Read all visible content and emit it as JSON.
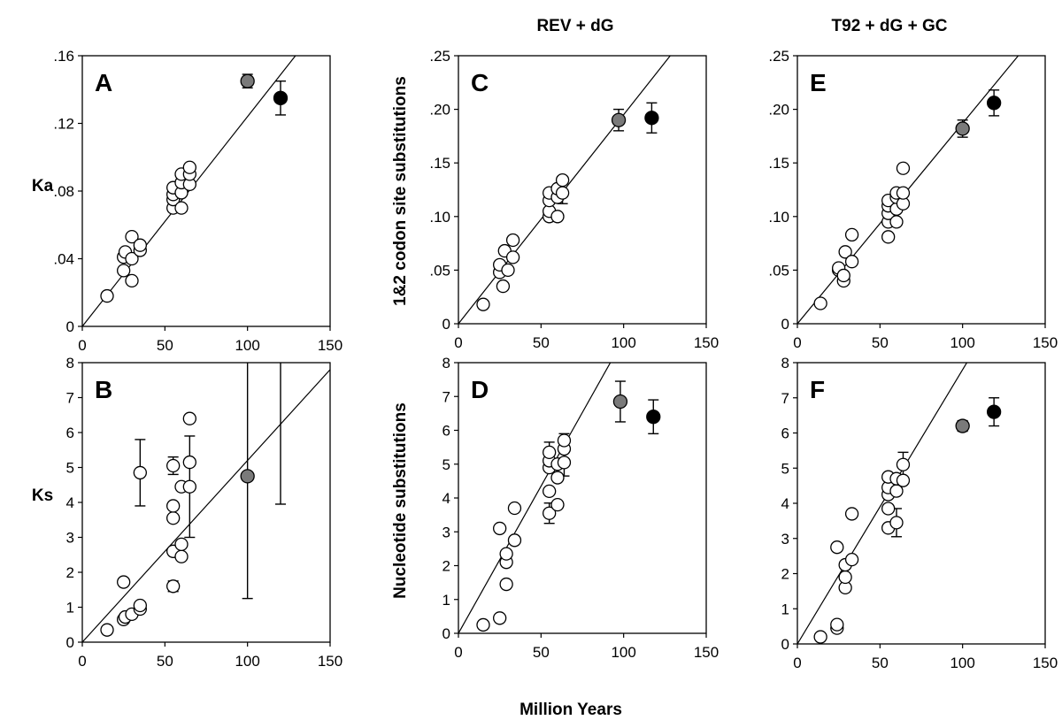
{
  "figure": {
    "x_axis_label": "Million Years",
    "column_titles": [
      "",
      "REV + dG",
      "T92 + dG + GC"
    ],
    "colors": {
      "open": "#ffffff",
      "grey": "#7a7a7a",
      "black": "#000000",
      "line": "#000000"
    }
  },
  "chart_data": [
    {
      "type": "scatter",
      "panel_label": "A",
      "ylabel": "Ka",
      "column_title": "",
      "xlim": [
        0,
        150
      ],
      "ylim": [
        0,
        0.16
      ],
      "xticks": [
        "0",
        "50",
        "100",
        "150"
      ],
      "yticks": [
        ".16",
        ".12",
        ".08",
        ".04",
        "0"
      ],
      "regression_line": {
        "slope": 0.00124,
        "intercept": 0
      },
      "points": [
        {
          "x": 15,
          "y": 0.018
        },
        {
          "x": 25,
          "y": 0.033
        },
        {
          "x": 25,
          "y": 0.041
        },
        {
          "x": 26,
          "y": 0.044
        },
        {
          "x": 30,
          "y": 0.027
        },
        {
          "x": 30,
          "y": 0.04
        },
        {
          "x": 30,
          "y": 0.053
        },
        {
          "x": 35,
          "y": 0.045
        },
        {
          "x": 35,
          "y": 0.048
        },
        {
          "x": 55,
          "y": 0.07
        },
        {
          "x": 55,
          "y": 0.075
        },
        {
          "x": 55,
          "y": 0.078
        },
        {
          "x": 55,
          "y": 0.082
        },
        {
          "x": 60,
          "y": 0.07
        },
        {
          "x": 60,
          "y": 0.079
        },
        {
          "x": 60,
          "y": 0.085
        },
        {
          "x": 60,
          "y": 0.09
        },
        {
          "x": 65,
          "y": 0.084
        },
        {
          "x": 65,
          "y": 0.09
        },
        {
          "x": 65,
          "y": 0.094
        }
      ],
      "highlight_points": [
        {
          "x": 100,
          "y": 0.145,
          "err": 0.004,
          "color": "grey"
        },
        {
          "x": 120,
          "y": 0.135,
          "err": 0.01,
          "color": "black"
        }
      ],
      "error_bars": []
    },
    {
      "type": "scatter",
      "panel_label": "B",
      "ylabel": "Ks",
      "column_title": "",
      "xlim": [
        0,
        150
      ],
      "ylim": [
        0,
        8
      ],
      "xticks": [
        "0",
        "50",
        "100",
        "150"
      ],
      "yticks": [
        "8",
        "7",
        "6",
        "5",
        "4",
        "3",
        "2",
        "1",
        "0"
      ],
      "regression_line": {
        "slope": 0.052,
        "intercept": 0
      },
      "points": [
        {
          "x": 15,
          "y": 0.35
        },
        {
          "x": 25,
          "y": 1.72
        },
        {
          "x": 25,
          "y": 0.65
        },
        {
          "x": 26,
          "y": 0.72
        },
        {
          "x": 30,
          "y": 0.8
        },
        {
          "x": 35,
          "y": 0.95
        },
        {
          "x": 35,
          "y": 1.05
        },
        {
          "x": 35,
          "y": 4.85
        },
        {
          "x": 55,
          "y": 1.6
        },
        {
          "x": 55,
          "y": 2.6
        },
        {
          "x": 55,
          "y": 3.55
        },
        {
          "x": 55,
          "y": 3.9
        },
        {
          "x": 55,
          "y": 5.05
        },
        {
          "x": 60,
          "y": 2.45
        },
        {
          "x": 60,
          "y": 2.8
        },
        {
          "x": 60,
          "y": 4.45
        },
        {
          "x": 65,
          "y": 4.45
        },
        {
          "x": 65,
          "y": 5.15
        },
        {
          "x": 65,
          "y": 6.4
        }
      ],
      "highlight_points": [
        {
          "x": 100,
          "y": 4.75,
          "err": 3.5,
          "color": "grey"
        }
      ],
      "error_bars": [
        {
          "x": 35,
          "y": 4.85,
          "err": 0.95
        },
        {
          "x": 55,
          "y": 5.05,
          "err": 0.25
        },
        {
          "x": 55,
          "y": 1.6,
          "err": 0.15
        },
        {
          "x": 65,
          "y": 4.45,
          "err": 1.45
        },
        {
          "x": 120,
          "y": 8.0,
          "err": 4.05
        }
      ]
    },
    {
      "type": "scatter",
      "panel_label": "C",
      "ylabel": "1&2 codon site substitutions",
      "column_title": "REV + dG",
      "xlim": [
        0,
        150
      ],
      "ylim": [
        0,
        0.25
      ],
      "xticks": [
        "0",
        "50",
        "100",
        "150"
      ],
      "yticks": [
        ".25",
        ".20",
        ".15",
        ".10",
        ".05",
        "0"
      ],
      "regression_line": {
        "slope": 0.00195,
        "intercept": 0
      },
      "points": [
        {
          "x": 15,
          "y": 0.018
        },
        {
          "x": 25,
          "y": 0.048
        },
        {
          "x": 25,
          "y": 0.055
        },
        {
          "x": 27,
          "y": 0.035
        },
        {
          "x": 28,
          "y": 0.068
        },
        {
          "x": 30,
          "y": 0.05
        },
        {
          "x": 33,
          "y": 0.062
        },
        {
          "x": 33,
          "y": 0.078
        },
        {
          "x": 55,
          "y": 0.1
        },
        {
          "x": 55,
          "y": 0.105
        },
        {
          "x": 55,
          "y": 0.115
        },
        {
          "x": 55,
          "y": 0.122
        },
        {
          "x": 60,
          "y": 0.1
        },
        {
          "x": 60,
          "y": 0.118
        },
        {
          "x": 60,
          "y": 0.126
        },
        {
          "x": 63,
          "y": 0.122
        },
        {
          "x": 63,
          "y": 0.134
        }
      ],
      "highlight_points": [
        {
          "x": 97,
          "y": 0.19,
          "err": 0.01,
          "color": "grey"
        },
        {
          "x": 117,
          "y": 0.192,
          "err": 0.014,
          "color": "black"
        }
      ],
      "error_bars": [
        {
          "x": 63,
          "y": 0.122,
          "err": 0.01
        }
      ]
    },
    {
      "type": "scatter",
      "panel_label": "D",
      "ylabel": "Nucleotide substitutions",
      "column_title": "REV + dG",
      "xlim": [
        0,
        150
      ],
      "ylim": [
        0,
        8
      ],
      "xticks": [
        "0",
        "50",
        "100",
        "150"
      ],
      "yticks": [
        "8",
        "7",
        "6",
        "5",
        "4",
        "3",
        "2",
        "1",
        "0"
      ],
      "regression_line": {
        "slope": 0.087,
        "intercept": 0
      },
      "points": [
        {
          "x": 15,
          "y": 0.25
        },
        {
          "x": 25,
          "y": 0.45
        },
        {
          "x": 25,
          "y": 3.1
        },
        {
          "x": 29,
          "y": 1.45
        },
        {
          "x": 29,
          "y": 2.1
        },
        {
          "x": 29,
          "y": 2.35
        },
        {
          "x": 34,
          "y": 2.75
        },
        {
          "x": 34,
          "y": 3.7
        },
        {
          "x": 55,
          "y": 3.55
        },
        {
          "x": 55,
          "y": 4.2
        },
        {
          "x": 55,
          "y": 4.9
        },
        {
          "x": 55,
          "y": 5.1
        },
        {
          "x": 55,
          "y": 5.35
        },
        {
          "x": 60,
          "y": 3.8
        },
        {
          "x": 60,
          "y": 4.6
        },
        {
          "x": 60,
          "y": 5.0
        },
        {
          "x": 64,
          "y": 5.05
        },
        {
          "x": 64,
          "y": 5.45
        },
        {
          "x": 64,
          "y": 5.7
        }
      ],
      "highlight_points": [
        {
          "x": 98,
          "y": 6.85,
          "err": 0.6,
          "color": "grey"
        },
        {
          "x": 118,
          "y": 6.4,
          "err": 0.5,
          "color": "black"
        }
      ],
      "error_bars": [
        {
          "x": 55,
          "y": 3.55,
          "err": 0.3
        },
        {
          "x": 55,
          "y": 5.35,
          "err": 0.3
        },
        {
          "x": 64,
          "y": 5.05,
          "err": 0.4
        },
        {
          "x": 64,
          "y": 5.7,
          "err": 0.2
        }
      ]
    },
    {
      "type": "scatter",
      "panel_label": "E",
      "ylabel": "",
      "column_title": "T92 + dG + GC",
      "xlim": [
        0,
        150
      ],
      "ylim": [
        0,
        0.25
      ],
      "xticks": [
        "0",
        "50",
        "100",
        "150"
      ],
      "yticks": [
        ".25",
        ".20",
        ".15",
        ".10",
        ".05",
        "0"
      ],
      "regression_line": {
        "slope": 0.00187,
        "intercept": 0
      },
      "points": [
        {
          "x": 14,
          "y": 0.019
        },
        {
          "x": 25,
          "y": 0.05
        },
        {
          "x": 25,
          "y": 0.052
        },
        {
          "x": 28,
          "y": 0.04
        },
        {
          "x": 28,
          "y": 0.045
        },
        {
          "x": 29,
          "y": 0.067
        },
        {
          "x": 33,
          "y": 0.058
        },
        {
          "x": 33,
          "y": 0.083
        },
        {
          "x": 55,
          "y": 0.081
        },
        {
          "x": 55,
          "y": 0.095
        },
        {
          "x": 55,
          "y": 0.103
        },
        {
          "x": 55,
          "y": 0.11
        },
        {
          "x": 55,
          "y": 0.115
        },
        {
          "x": 60,
          "y": 0.095
        },
        {
          "x": 60,
          "y": 0.107
        },
        {
          "x": 60,
          "y": 0.118
        },
        {
          "x": 60,
          "y": 0.122
        },
        {
          "x": 64,
          "y": 0.112
        },
        {
          "x": 64,
          "y": 0.122
        },
        {
          "x": 64,
          "y": 0.145
        }
      ],
      "highlight_points": [
        {
          "x": 100,
          "y": 0.182,
          "err": 0.008,
          "color": "grey"
        },
        {
          "x": 119,
          "y": 0.206,
          "err": 0.012,
          "color": "black"
        }
      ],
      "error_bars": []
    },
    {
      "type": "scatter",
      "panel_label": "F",
      "ylabel": "",
      "column_title": "T92 + dG + GC",
      "xlim": [
        0,
        150
      ],
      "ylim": [
        0,
        8
      ],
      "xticks": [
        "0",
        "50",
        "100",
        "150"
      ],
      "yticks": [
        "8",
        "7",
        "6",
        "5",
        "4",
        "3",
        "2",
        "1",
        "0"
      ],
      "regression_line": {
        "slope": 0.078,
        "intercept": 0
      },
      "points": [
        {
          "x": 14,
          "y": 0.2
        },
        {
          "x": 24,
          "y": 0.45
        },
        {
          "x": 24,
          "y": 0.55
        },
        {
          "x": 24,
          "y": 2.75
        },
        {
          "x": 29,
          "y": 1.6
        },
        {
          "x": 29,
          "y": 1.9
        },
        {
          "x": 29,
          "y": 2.25
        },
        {
          "x": 33,
          "y": 2.4
        },
        {
          "x": 33,
          "y": 3.7
        },
        {
          "x": 55,
          "y": 3.3
        },
        {
          "x": 55,
          "y": 3.85
        },
        {
          "x": 55,
          "y": 4.25
        },
        {
          "x": 55,
          "y": 4.45
        },
        {
          "x": 55,
          "y": 4.75
        },
        {
          "x": 60,
          "y": 3.45
        },
        {
          "x": 60,
          "y": 4.35
        },
        {
          "x": 60,
          "y": 4.7
        },
        {
          "x": 64,
          "y": 4.65
        },
        {
          "x": 64,
          "y": 5.1
        }
      ],
      "highlight_points": [
        {
          "x": 100,
          "y": 6.2,
          "err": 0.15,
          "color": "grey"
        },
        {
          "x": 119,
          "y": 6.6,
          "err": 0.4,
          "color": "black"
        }
      ],
      "error_bars": [
        {
          "x": 60,
          "y": 3.45,
          "err": 0.4
        },
        {
          "x": 64,
          "y": 5.1,
          "err": 0.35
        }
      ]
    }
  ]
}
